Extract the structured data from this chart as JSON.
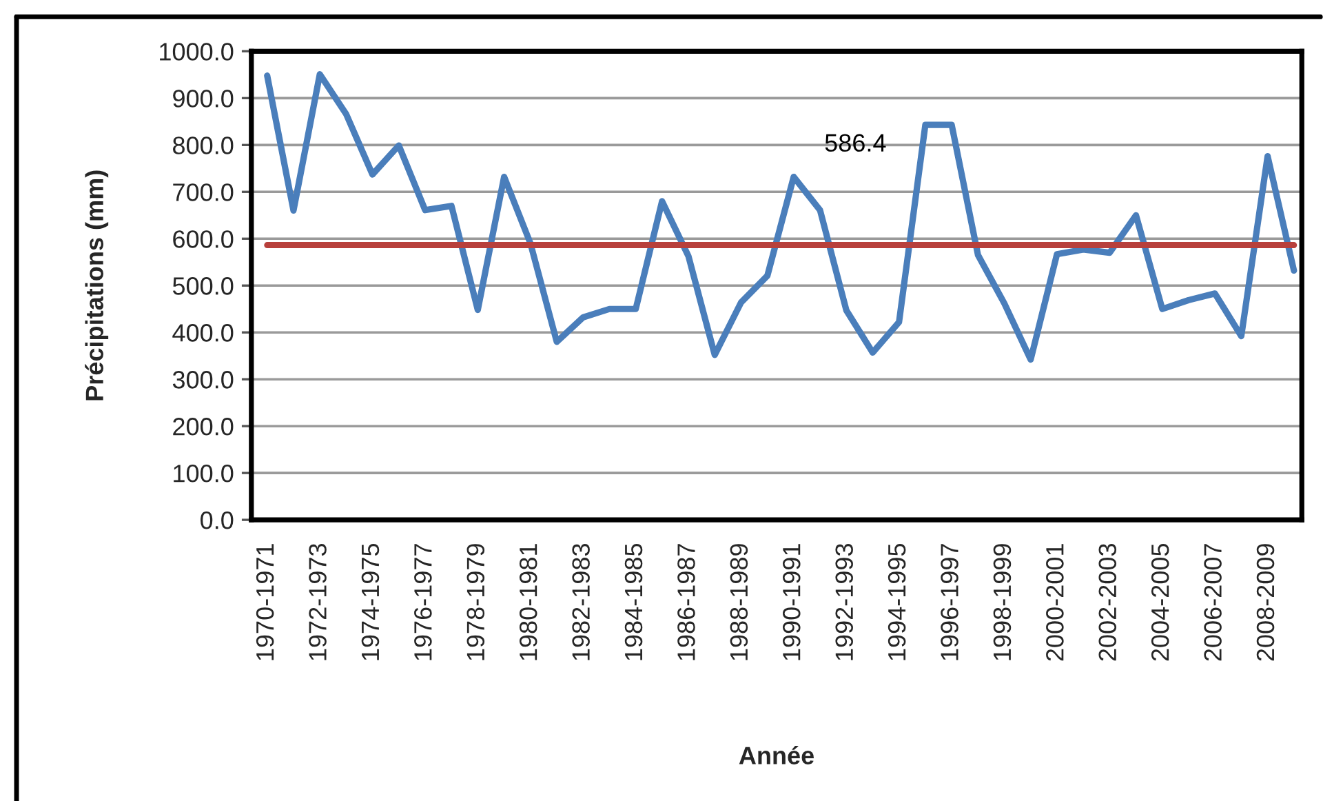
{
  "chart_data": {
    "type": "line",
    "xlabel": "Année",
    "ylabel": "Précipitations (mm)",
    "categories": [
      "1970-1971",
      null,
      "1972-1973",
      null,
      "1974-1975",
      null,
      "1976-1977",
      null,
      "1978-1979",
      null,
      "1980-1981",
      null,
      "1982-1983",
      null,
      "1984-1985",
      null,
      "1986-1987",
      null,
      "1988-1989",
      null,
      "1990-1991",
      null,
      "1992-1993",
      null,
      "1994-1995",
      null,
      "1996-1997",
      null,
      "1998-1999",
      null,
      "2000-2001",
      null,
      "2002-2003",
      null,
      "2004-2005",
      null,
      "2006-2007",
      null,
      "2008-2009",
      null
    ],
    "series": [
      {
        "color": "#4a7ebb",
        "values": [
          948,
          660,
          951,
          866,
          737,
          799,
          661,
          670,
          448,
          732,
          590,
          380,
          432,
          450,
          450,
          680,
          563,
          352,
          464,
          521,
          732,
          661,
          447,
          357,
          422,
          843,
          843,
          565,
          462,
          342,
          567,
          577,
          570,
          650,
          450,
          469,
          483,
          392,
          776,
          532
        ]
      }
    ],
    "ylim": [
      0,
      1000
    ],
    "yticks": [
      {
        "value": 0,
        "label": "0.0"
      },
      {
        "value": 100,
        "label": "100.0"
      },
      {
        "value": 200,
        "label": "200.0"
      },
      {
        "value": 300,
        "label": "300.0"
      },
      {
        "value": 400,
        "label": "400.0"
      },
      {
        "value": 500,
        "label": "500.0"
      },
      {
        "value": 600,
        "label": "600.0"
      },
      {
        "value": 700,
        "label": "700.0"
      },
      {
        "value": 800,
        "label": "800.0"
      },
      {
        "value": 900,
        "label": "900.0"
      },
      {
        "value": 1000,
        "label": "1000.0"
      }
    ],
    "grid": "y",
    "line_style": "solid",
    "ref_lines": [
      {
        "axis": "y",
        "value": 586.4,
        "color": "#b8403c"
      }
    ],
    "annotations": [
      "586.4"
    ]
  }
}
